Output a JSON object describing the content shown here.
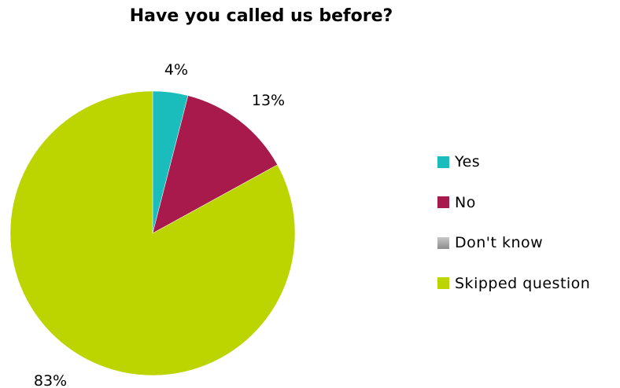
{
  "chart_data": {
    "type": "pie",
    "title": "Have you called us before?",
    "categories": [
      "Yes",
      "No",
      "Don't know",
      "Skipped question"
    ],
    "values": [
      4,
      13,
      0,
      83
    ],
    "data_labels": [
      "4%",
      "13%",
      "",
      "83%"
    ],
    "colors": [
      "#1bbcbc",
      "#a81a4b",
      "#a6a6a6",
      "#bcd400"
    ],
    "legend_position": "right"
  }
}
